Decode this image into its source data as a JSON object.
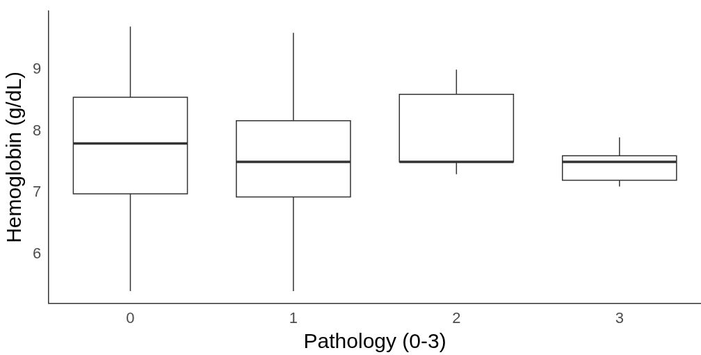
{
  "chart_data": {
    "type": "box",
    "xlabel": "Pathology (0-3)",
    "ylabel": "Hemoglobin (g/dL)",
    "categories": [
      "0",
      "1",
      "2",
      "3"
    ],
    "boxes": [
      {
        "low": 5.4,
        "q1": 6.98,
        "median": 7.8,
        "q3": 8.55,
        "high": 9.7
      },
      {
        "low": 5.4,
        "q1": 6.93,
        "median": 7.5,
        "q3": 8.17,
        "high": 9.6
      },
      {
        "low": 7.3,
        "q1": 7.5,
        "median": 7.5,
        "q3": 8.6,
        "high": 9.0
      },
      {
        "low": 7.1,
        "q1": 7.2,
        "median": 7.5,
        "q3": 7.6,
        "high": 7.9
      }
    ],
    "ylim": [
      5.2,
      9.95
    ],
    "yticks": [
      6,
      7,
      8,
      9
    ],
    "grid": false,
    "legend": false
  }
}
